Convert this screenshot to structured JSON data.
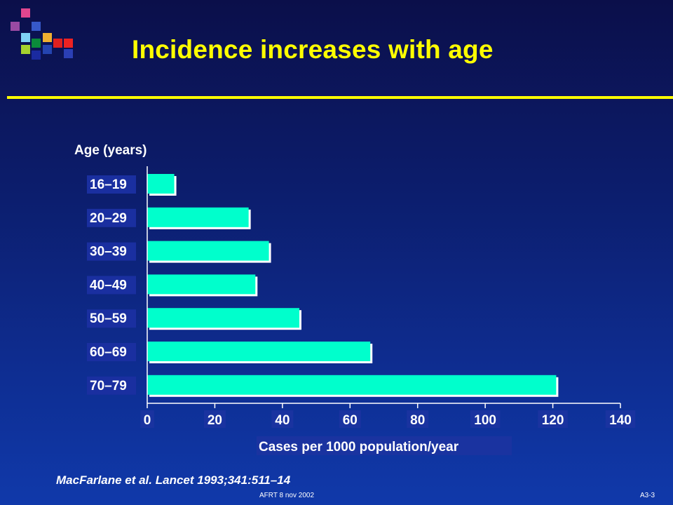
{
  "slide": {
    "title": "Incidence increases with age",
    "source": "MacFarlane et al. Lancet 1993;341:511–14",
    "footer": "AFRT 8 nov 2002",
    "slide_number": "A3-3",
    "title_color": "#ffff00",
    "rule_color": "#ffff00"
  },
  "chart_data": {
    "type": "bar",
    "orientation": "horizontal",
    "title": "",
    "ylabel": "Age (years)",
    "xlabel": "Cases per 1000 population/year",
    "categories": [
      "16–19",
      "20–29",
      "30–39",
      "40–49",
      "50–59",
      "60–69",
      "70–79"
    ],
    "values": [
      8,
      30,
      36,
      32,
      45,
      66,
      121
    ],
    "xlim": [
      0,
      140
    ],
    "xticks": [
      0,
      20,
      40,
      60,
      80,
      100,
      120,
      140
    ],
    "grid": false,
    "bar_color": "#00ffcc",
    "bar_border_color": "#ffffff"
  }
}
